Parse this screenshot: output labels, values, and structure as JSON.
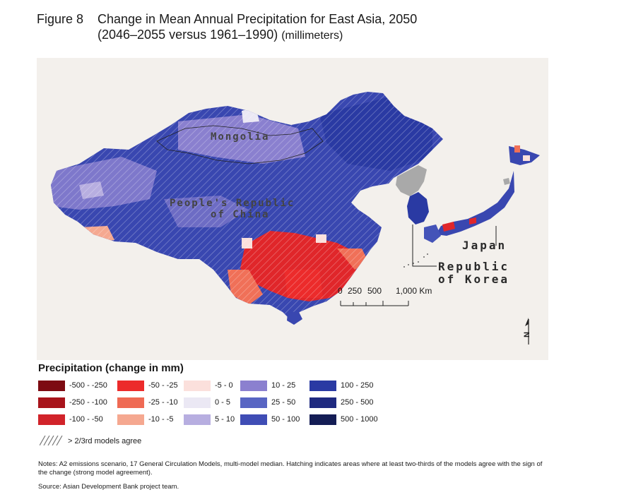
{
  "figure": {
    "number": "Figure 8",
    "title_line1": "Change in Mean Annual Precipitation for East Asia, 2050",
    "title_line2": "(2046–2055 versus 1961–1990)",
    "unit": "(millimeters)"
  },
  "map": {
    "labels": {
      "mongolia": "Mongolia",
      "china_line1": "People's Republic",
      "china_line2": "of China",
      "japan": "Japan",
      "korea_line1": "Republic",
      "korea_line2": "of Korea"
    },
    "scale_bar": {
      "ticks": [
        "0",
        "250",
        "500",
        "1,000 Km"
      ]
    },
    "north_arrow": "N",
    "colors": {
      "background": "#f3f0ec",
      "dark_blue": "#2e3a9e",
      "mid_blue": "#4453b8",
      "light_purple": "#7f7ccc",
      "red": "#e0262a",
      "coral": "#f07058",
      "gray": "#aaaaaa"
    }
  },
  "legend": {
    "title": "Precipitation (change in mm)",
    "items": [
      {
        "label": "-500 - -250",
        "color": "#7d0b12"
      },
      {
        "label": "-250 - -100",
        "color": "#a8141b"
      },
      {
        "label": "-100 - -50",
        "color": "#d1232a"
      },
      {
        "label": "-50 - -25",
        "color": "#ec2b2b"
      },
      {
        "label": "-25 - -10",
        "color": "#ef6a54"
      },
      {
        "label": "-10 - -5",
        "color": "#f5a890"
      },
      {
        "label": "-5 - 0",
        "color": "#fbe0dc"
      },
      {
        "label": "0 - 5",
        "color": "#ebe8f4"
      },
      {
        "label": "5 - 10",
        "color": "#b7aee0"
      },
      {
        "label": "10 - 25",
        "color": "#8b80cf"
      },
      {
        "label": "25 - 50",
        "color": "#5865c3"
      },
      {
        "label": "50 - 100",
        "color": "#3f4db5"
      },
      {
        "label": "100 - 250",
        "color": "#2a3aa3"
      },
      {
        "label": "250 - 500",
        "color": "#1f2a80"
      },
      {
        "label": "500 - 1000",
        "color": "#141d55"
      }
    ],
    "hatch_label": "> 2/3rd models agree"
  },
  "notes": "Notes: A2 emissions scenario, 17 General Circulation Models, multi-model median. Hatching indicates areas where at least two-thirds of the models agree with the sign of the change (strong model agreement).",
  "source": "Source: Asian Development Bank project team."
}
